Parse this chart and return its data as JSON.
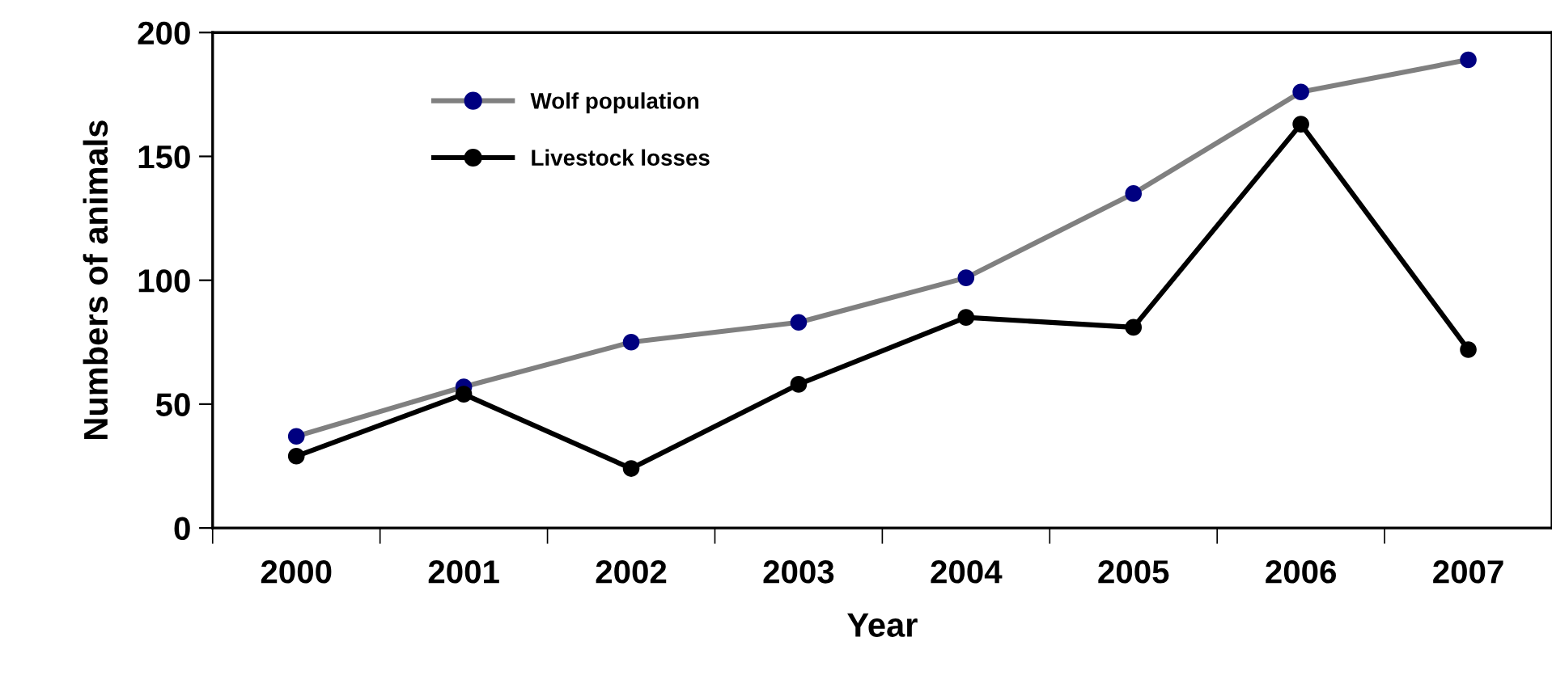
{
  "chart_data": {
    "type": "line",
    "xlabel": "Year",
    "ylabel": "Numbers of animals",
    "categories": [
      "2000",
      "2001",
      "2002",
      "2003",
      "2004",
      "2005",
      "2006",
      "2007"
    ],
    "series": [
      {
        "name": "Wolf population",
        "color": "#808080",
        "colors": [
          "#000080",
          "#000080",
          "#000080",
          "#000080",
          "#000080",
          "#000080",
          "#000080",
          "#000080"
        ],
        "values": [
          37,
          57,
          75,
          83,
          101,
          135,
          176,
          189
        ]
      },
      {
        "name": "Livestock losses",
        "color": "#000000",
        "values": [
          29,
          54,
          24,
          58,
          85,
          81,
          163,
          72
        ]
      }
    ],
    "ylim": [
      0,
      200
    ],
    "yticks": [
      0,
      50,
      100,
      150,
      200
    ],
    "grid": false,
    "legend": "top left",
    "marker": "circle",
    "line_style": "solid"
  }
}
